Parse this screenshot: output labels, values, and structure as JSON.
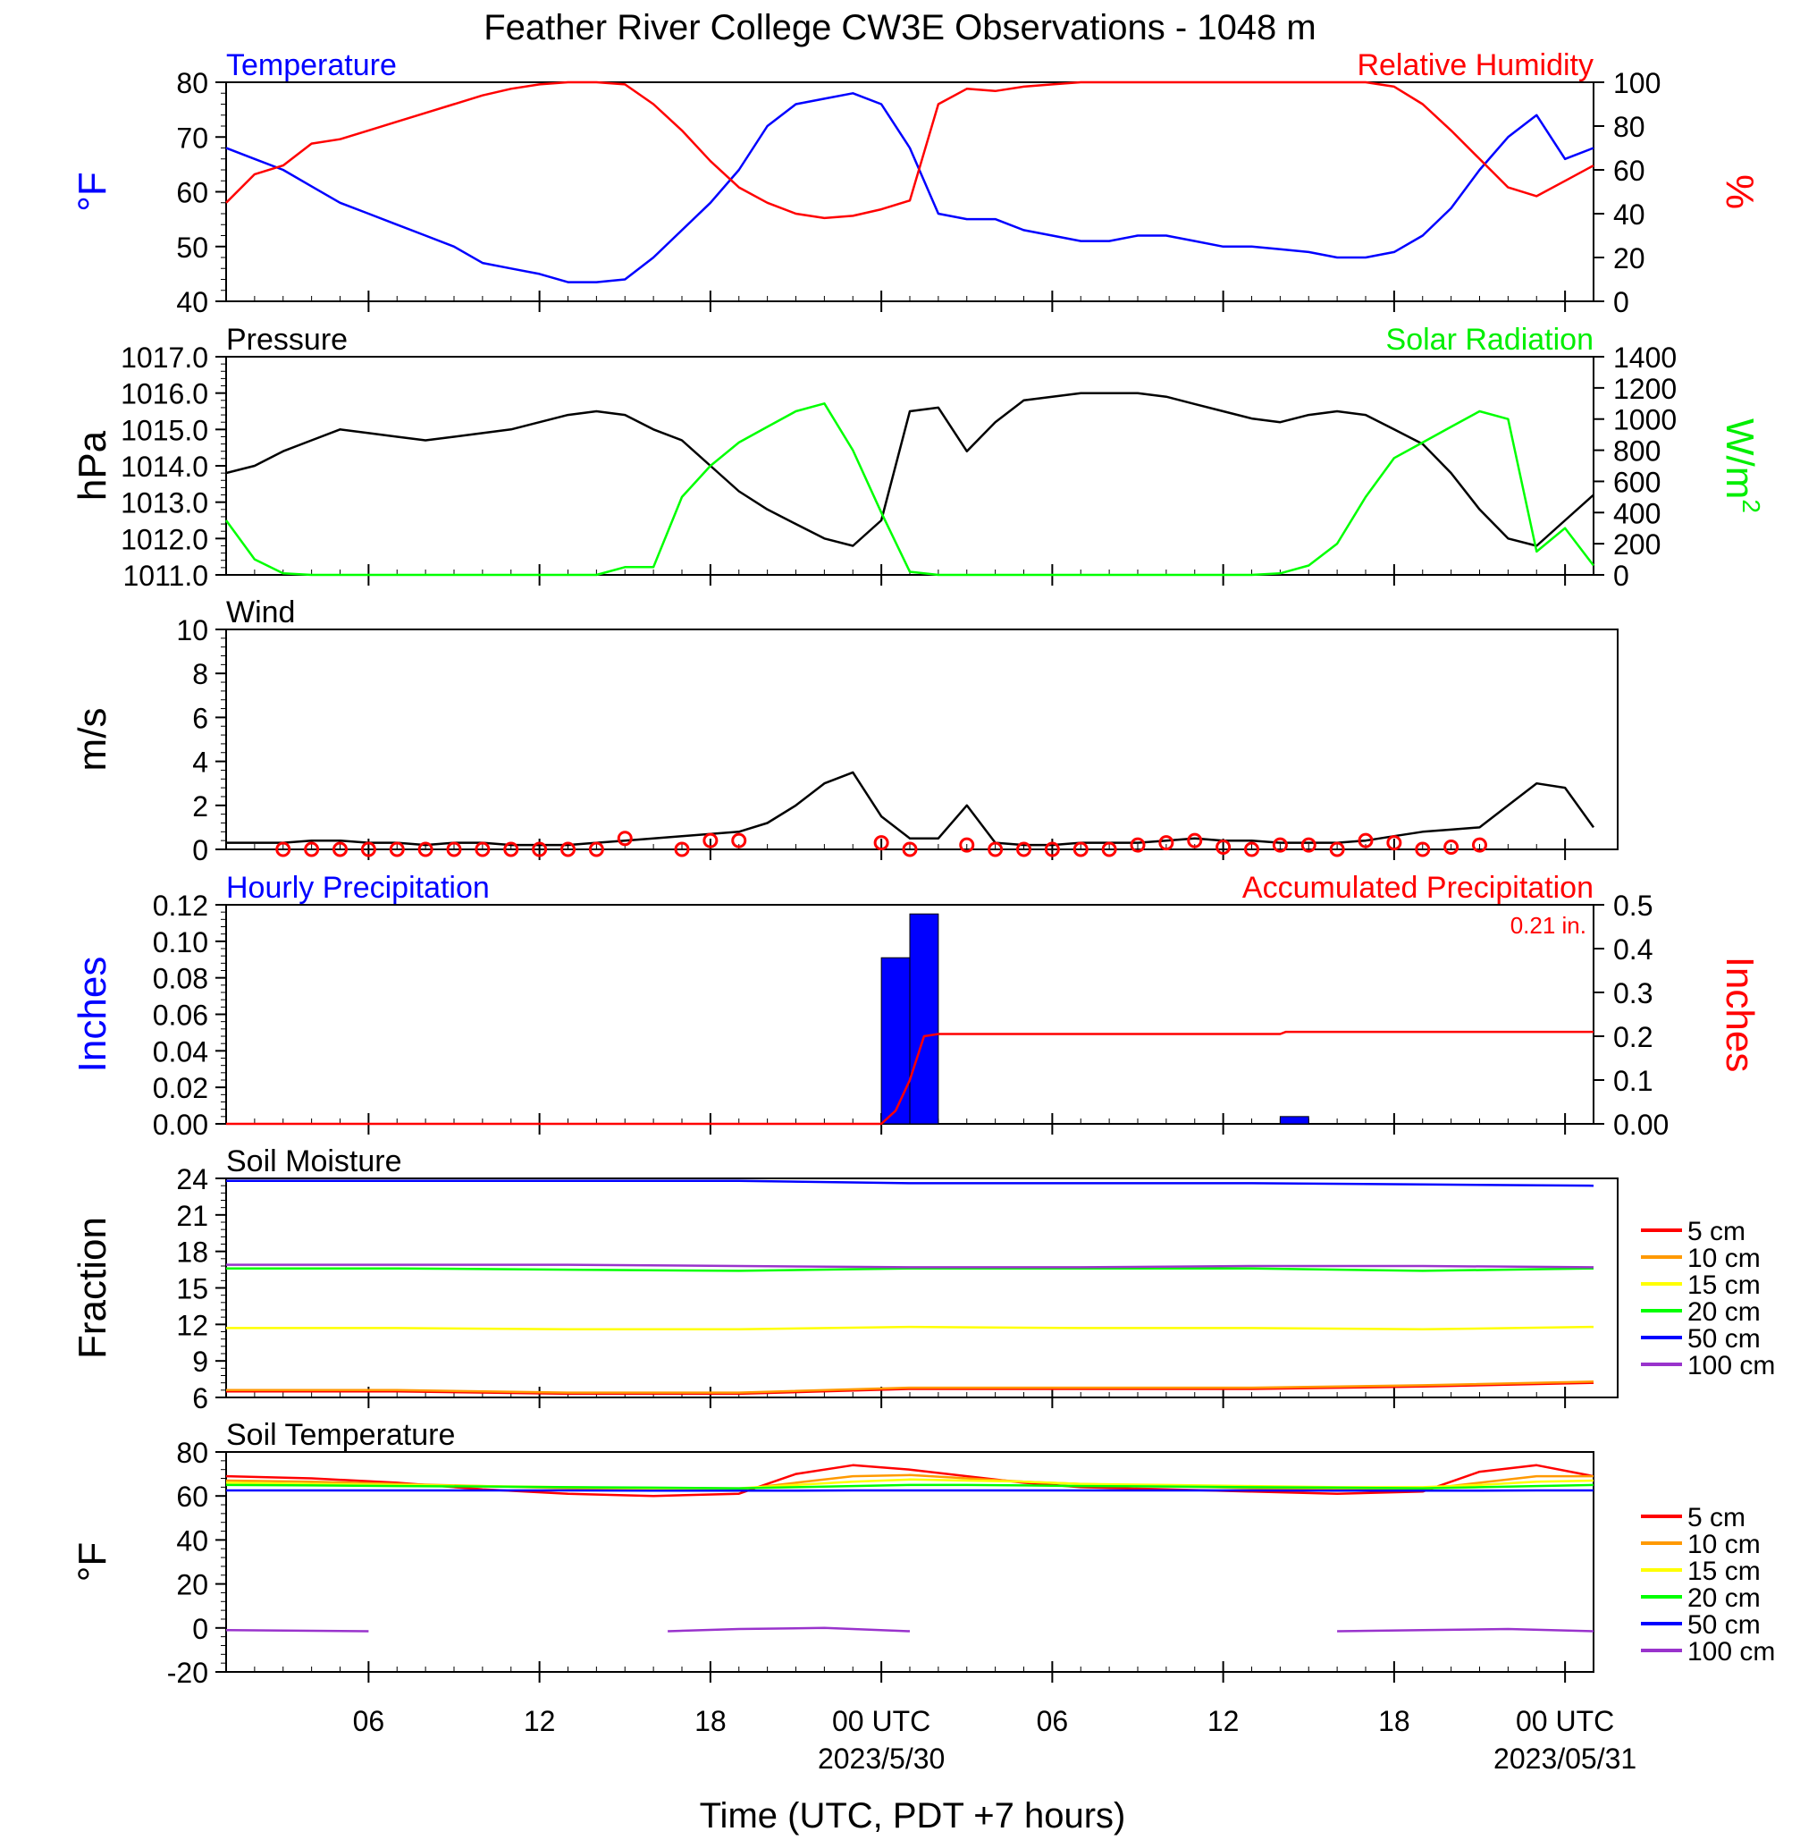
{
  "figure": {
    "title": "Feather River College CW3E Observations - 1048 m",
    "xlabel": "Time (UTC, PDT +7 hours)",
    "x_ticks": [
      {
        "h": 6,
        "label": "06"
      },
      {
        "h": 12,
        "label": "12"
      },
      {
        "h": 18,
        "label": "18"
      },
      {
        "h": 24,
        "label": "00 UTC"
      },
      {
        "h": 30,
        "label": "06"
      },
      {
        "h": 36,
        "label": "12"
      },
      {
        "h": 42,
        "label": "18"
      },
      {
        "h": 48,
        "label": "00 UTC"
      }
    ],
    "date_labels": [
      {
        "h": 24,
        "label": "2023/5/30"
      },
      {
        "h": 48,
        "label": "2023/05/31"
      }
    ],
    "x_range": [
      1,
      49
    ]
  },
  "chart_data": [
    {
      "type": "line",
      "panel": "temp-rh",
      "title_left": "Temperature",
      "title_right": "Relative Humidity",
      "ylabel_left": "°F",
      "ylabel_right": "%",
      "ylim_left": [
        40,
        80
      ],
      "yticks_left": [
        40,
        50,
        60,
        70,
        80
      ],
      "ylim_right": [
        0,
        100
      ],
      "yticks_right": [
        0,
        20,
        40,
        60,
        80,
        100
      ],
      "x": [
        1,
        2,
        3,
        4,
        5,
        6,
        7,
        8,
        9,
        10,
        11,
        12,
        13,
        14,
        15,
        16,
        17,
        18,
        19,
        20,
        21,
        22,
        23,
        24,
        25,
        26,
        27,
        28,
        29,
        30,
        31,
        32,
        33,
        34,
        35,
        36,
        37,
        38,
        39,
        40,
        41,
        42,
        43,
        44,
        45,
        46,
        47,
        48,
        49
      ],
      "series": [
        {
          "name": "Temperature",
          "axis": "left",
          "color": "#0000ff",
          "values": [
            68,
            66,
            64,
            61,
            58,
            56,
            54,
            52,
            50,
            47,
            46,
            45,
            43.5,
            43.5,
            44,
            48,
            53,
            58,
            64,
            72,
            76,
            77,
            78,
            76,
            68,
            56,
            55,
            55,
            53,
            52,
            51,
            51,
            52,
            52,
            51,
            50,
            50,
            49.5,
            49,
            48,
            48,
            49,
            52,
            57,
            64,
            70,
            74,
            66,
            68
          ]
        },
        {
          "name": "Relative Humidity",
          "axis": "right",
          "color": "#ff0000",
          "values": [
            45,
            58,
            62,
            72,
            74,
            78,
            82,
            86,
            90,
            94,
            97,
            99,
            100,
            100,
            99,
            90,
            78,
            64,
            52,
            45,
            40,
            38,
            39,
            42,
            46,
            90,
            97,
            96,
            98,
            99,
            100,
            100,
            100,
            100,
            100,
            100,
            100,
            100,
            100,
            100,
            100,
            98,
            90,
            78,
            65,
            52,
            48,
            55,
            62
          ]
        }
      ]
    },
    {
      "type": "line",
      "panel": "pressure-solar",
      "title_left": "Pressure",
      "title_right": "Solar Radiation",
      "ylabel_left": "hPa",
      "ylabel_right": "W/m",
      "ylabel_right_superscript": "2",
      "ylim_left": [
        1011.0,
        1017.0
      ],
      "yticks_left": [
        "1011.0",
        "1012.0",
        "1013.0",
        "1014.0",
        "1015.0",
        "1016.0",
        "1017.0"
      ],
      "ylim_right": [
        0,
        1400
      ],
      "yticks_right": [
        0,
        200,
        400,
        600,
        800,
        1000,
        1200,
        1400
      ],
      "x": [
        1,
        2,
        3,
        4,
        5,
        6,
        7,
        8,
        9,
        10,
        11,
        12,
        13,
        14,
        15,
        16,
        17,
        18,
        19,
        20,
        21,
        22,
        23,
        24,
        25,
        26,
        27,
        28,
        29,
        30,
        31,
        32,
        33,
        34,
        35,
        36,
        37,
        38,
        39,
        40,
        41,
        42,
        43,
        44,
        45,
        46,
        47,
        48,
        49
      ],
      "series": [
        {
          "name": "Pressure",
          "axis": "left",
          "color": "#000000",
          "values": [
            1013.8,
            1014.0,
            1014.4,
            1014.7,
            1015.0,
            1014.9,
            1014.8,
            1014.7,
            1014.8,
            1014.9,
            1015.0,
            1015.2,
            1015.4,
            1015.5,
            1015.4,
            1015.0,
            1014.7,
            1014.0,
            1013.3,
            1012.8,
            1012.4,
            1012.0,
            1011.8,
            1012.5,
            1015.5,
            1015.6,
            1014.4,
            1015.2,
            1015.8,
            1015.9,
            1016.0,
            1016.0,
            1016.0,
            1015.9,
            1015.7,
            1015.5,
            1015.3,
            1015.2,
            1015.4,
            1015.5,
            1015.4,
            1015.0,
            1014.6,
            1013.8,
            1012.8,
            1012.0,
            1011.8,
            1012.5,
            1013.2
          ]
        },
        {
          "name": "Solar Radiation",
          "axis": "right",
          "color": "#00ff00",
          "values": [
            350,
            100,
            10,
            0,
            0,
            0,
            0,
            0,
            0,
            0,
            0,
            0,
            0,
            0,
            50,
            50,
            500,
            700,
            850,
            950,
            1050,
            1100,
            800,
            400,
            20,
            0,
            0,
            0,
            0,
            0,
            0,
            0,
            0,
            0,
            0,
            0,
            0,
            10,
            60,
            200,
            500,
            750,
            850,
            950,
            1050,
            1000,
            150,
            300,
            60
          ]
        }
      ]
    },
    {
      "type": "line",
      "panel": "wind",
      "title_left": "Wind",
      "ylabel_left": "m/s",
      "ylim": [
        0,
        10
      ],
      "yticks": [
        0,
        2,
        4,
        6,
        8,
        10
      ],
      "x": [
        1,
        2,
        3,
        4,
        5,
        6,
        7,
        8,
        9,
        10,
        11,
        12,
        13,
        14,
        15,
        16,
        17,
        18,
        19,
        20,
        21,
        22,
        23,
        24,
        25,
        26,
        27,
        28,
        29,
        30,
        31,
        32,
        33,
        34,
        35,
        36,
        37,
        38,
        39,
        40,
        41,
        42,
        43,
        44,
        45,
        46,
        47,
        48,
        49
      ],
      "series": [
        {
          "name": "Wind speed",
          "color": "#000000",
          "values": [
            0.3,
            0.3,
            0.3,
            0.4,
            0.4,
            0.3,
            0.3,
            0.2,
            0.3,
            0.3,
            0.2,
            0.2,
            0.2,
            0.3,
            0.4,
            0.5,
            0.6,
            0.7,
            0.8,
            1.2,
            2.0,
            3.0,
            3.5,
            1.5,
            0.5,
            0.5,
            2.0,
            0.3,
            0.2,
            0.2,
            0.3,
            0.3,
            0.3,
            0.4,
            0.5,
            0.4,
            0.4,
            0.3,
            0.3,
            0.3,
            0.4,
            0.6,
            0.8,
            0.9,
            1.0,
            2.0,
            3.0,
            2.8,
            1.0
          ]
        }
      ],
      "barb_markers": {
        "x": [
          3,
          4,
          5,
          6,
          7,
          8,
          9,
          10,
          11,
          12,
          13,
          14,
          15,
          17,
          18,
          19,
          24,
          25,
          27,
          28,
          29,
          30,
          31,
          32,
          33,
          34,
          35,
          36,
          37,
          38,
          39,
          40,
          41,
          42,
          43,
          44,
          45
        ],
        "values": [
          0,
          0,
          0,
          0,
          0,
          0,
          0,
          0,
          0,
          0,
          0,
          0,
          0.5,
          0,
          0.4,
          0.4,
          0.3,
          0,
          0.2,
          0,
          0,
          0,
          0,
          0,
          0.2,
          0.3,
          0.4,
          0.1,
          0,
          0.2,
          0.2,
          0,
          0.4,
          0.3,
          0,
          0.1,
          0.2
        ]
      }
    },
    {
      "type": "bar",
      "panel": "precip",
      "title_left": "Hourly Precipitation",
      "title_right": "Accumulated Precipitation",
      "annotation": "0.21 in.",
      "ylabel_left": "Inches",
      "ylabel_right": "Inches",
      "ylim_left": [
        0,
        0.12
      ],
      "yticks_left": [
        "0.00",
        "0.02",
        "0.04",
        "0.06",
        "0.08",
        "0.10",
        "0.12"
      ],
      "ylim_right": [
        0,
        0.5
      ],
      "yticks_right": [
        "0.00",
        "0.1",
        "0.2",
        "0.3",
        "0.4",
        "0.5"
      ],
      "bars": {
        "name": "Hourly Precipitation",
        "color": "#0000ff",
        "x": [
          24,
          25,
          38
        ],
        "values": [
          0.091,
          0.115,
          0.004
        ]
      },
      "series": [
        {
          "name": "Accumulated Precipitation",
          "axis": "right",
          "color": "#ff0000",
          "x": [
            1,
            24,
            24.5,
            25,
            25.5,
            26,
            38,
            38.2,
            49
          ],
          "values": [
            0,
            0,
            0.03,
            0.1,
            0.2,
            0.205,
            0.205,
            0.21,
            0.21
          ]
        }
      ]
    },
    {
      "type": "line",
      "panel": "soil-moisture",
      "title_left": "Soil Moisture",
      "ylabel_left": "Fraction",
      "ylim": [
        6,
        24
      ],
      "yticks": [
        6,
        9,
        12,
        15,
        18,
        21,
        24
      ],
      "legend": [
        "5 cm",
        "10 cm",
        "15 cm",
        "20 cm",
        "50 cm",
        "100 cm"
      ],
      "x": [
        1,
        7,
        13,
        19,
        25,
        31,
        37,
        43,
        49
      ],
      "series": [
        {
          "name": "5 cm",
          "color": "#ff0000",
          "values": [
            6.5,
            6.5,
            6.3,
            6.3,
            6.7,
            6.7,
            6.7,
            6.9,
            7.2
          ]
        },
        {
          "name": "10 cm",
          "color": "#ff9900",
          "values": [
            6.6,
            6.6,
            6.4,
            6.4,
            6.8,
            6.8,
            6.8,
            7.0,
            7.3
          ]
        },
        {
          "name": "15 cm",
          "color": "#ffff00",
          "values": [
            11.7,
            11.7,
            11.6,
            11.6,
            11.8,
            11.7,
            11.7,
            11.6,
            11.8
          ]
        },
        {
          "name": "20 cm",
          "color": "#00ff00",
          "values": [
            16.6,
            16.6,
            16.5,
            16.4,
            16.6,
            16.6,
            16.6,
            16.4,
            16.6
          ]
        },
        {
          "name": "50 cm",
          "color": "#0000ff",
          "values": [
            23.8,
            23.8,
            23.8,
            23.8,
            23.6,
            23.6,
            23.6,
            23.5,
            23.4
          ]
        },
        {
          "name": "100 cm",
          "color": "#9933cc",
          "values": [
            16.9,
            16.9,
            16.9,
            16.8,
            16.7,
            16.7,
            16.8,
            16.8,
            16.7
          ]
        }
      ]
    },
    {
      "type": "line",
      "panel": "soil-temperature",
      "title_left": "Soil Temperature",
      "ylabel_left": "°F",
      "ylim": [
        -20,
        80
      ],
      "yticks": [
        -20,
        0,
        20,
        40,
        60,
        80
      ],
      "legend": [
        "5 cm",
        "10 cm",
        "15 cm",
        "20 cm",
        "50 cm",
        "100 cm"
      ],
      "x": [
        1,
        4,
        7,
        10,
        13,
        16,
        19,
        21,
        23,
        25,
        27,
        29,
        31,
        34,
        37,
        40,
        43,
        45,
        47,
        49
      ],
      "series": [
        {
          "name": "5 cm",
          "color": "#ff0000",
          "values": [
            69,
            68,
            66,
            63,
            61,
            60,
            61,
            70,
            74,
            72,
            69,
            66,
            64,
            63,
            62,
            61,
            62,
            71,
            74,
            69
          ]
        },
        {
          "name": "10 cm",
          "color": "#ff9900",
          "values": [
            67,
            66.5,
            65.5,
            64.5,
            63.5,
            63,
            63,
            66,
            69,
            69.5,
            68,
            66.5,
            65.5,
            64.5,
            63.5,
            63,
            63,
            66,
            69,
            69
          ]
        },
        {
          "name": "15 cm",
          "color": "#ffff00",
          "values": [
            66,
            65.5,
            65,
            64.5,
            64,
            63.5,
            63.5,
            65,
            66.5,
            67.5,
            67,
            66.5,
            65.5,
            65,
            64.5,
            64,
            64,
            65,
            66.5,
            67
          ]
        },
        {
          "name": "20 cm",
          "color": "#00ff00",
          "values": [
            65,
            64.8,
            64.5,
            64.3,
            64,
            63.8,
            63.5,
            64,
            64.5,
            65,
            65,
            64.8,
            64.5,
            64.3,
            64,
            63.8,
            63.5,
            64,
            64.5,
            65
          ]
        },
        {
          "name": "50 cm",
          "color": "#0000ff",
          "values": [
            62.5,
            62.5,
            62.5,
            62.5,
            62.5,
            62.4,
            62.4,
            62.4,
            62.5,
            62.5,
            62.5,
            62.5,
            62.5,
            62.5,
            62.5,
            62.4,
            62.4,
            62.4,
            62.5,
            62.5
          ]
        },
        {
          "name": "100 cm",
          "color": "#9933cc",
          "segments": [
            {
              "x": [
                1,
                6
              ],
              "values": [
                -1,
                -1.5
              ]
            },
            {
              "x": [
                16.5,
                19,
                22,
                25
              ],
              "values": [
                -1.5,
                -0.5,
                0,
                -1.5
              ]
            },
            {
              "x": [
                40,
                43,
                46,
                49
              ],
              "values": [
                -1.5,
                -1,
                -0.5,
                -1.5
              ]
            }
          ]
        }
      ]
    }
  ]
}
